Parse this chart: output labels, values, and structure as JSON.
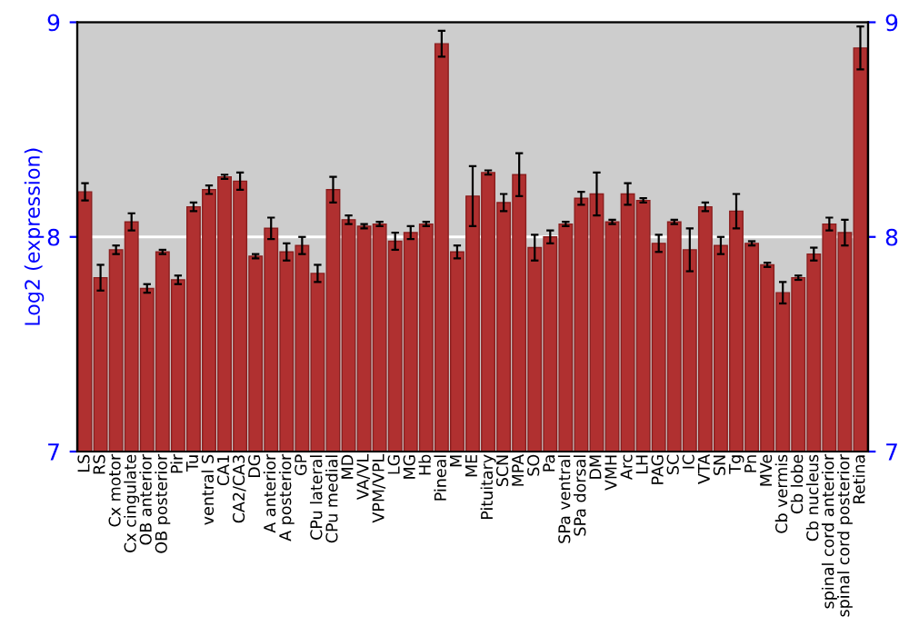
{
  "chart_data": {
    "type": "bar",
    "ylabel": "Log2 (expression)",
    "categories": [
      "LS",
      "RS",
      "Cx motor",
      "Cx cingulate",
      "OB anterior",
      "OB posterior",
      "Pir",
      "Tu",
      "ventral S",
      "CA1",
      "CA2/CA3",
      "DG",
      "A anterior",
      "A posterior",
      "GP",
      "CPu lateral",
      "CPu medial",
      "MD",
      "VA/VL",
      "VPM/VPL",
      "LG",
      "MG",
      "Hb",
      "Pineal",
      "M",
      "ME",
      "Pituitary",
      "SCN",
      "MPA",
      "SO",
      "Pa",
      "SPa ventral",
      "SPa dorsal",
      "DM",
      "VMH",
      "Arc",
      "LH",
      "PAG",
      "SC",
      "IC",
      "VTA",
      "SN",
      "Tg",
      "Pn",
      "MVe",
      "Cb vermis",
      "Cb lobe",
      "Cb nucleus",
      "spinal cord anterior",
      "spinal cord posterior",
      "Retina"
    ],
    "values": [
      8.21,
      7.81,
      7.94,
      8.07,
      7.76,
      7.93,
      7.8,
      8.14,
      8.22,
      8.28,
      8.26,
      7.91,
      8.04,
      7.93,
      7.96,
      7.83,
      8.22,
      8.08,
      8.05,
      8.06,
      7.98,
      8.02,
      8.06,
      8.9,
      7.93,
      8.19,
      8.3,
      8.16,
      8.29,
      7.95,
      8.0,
      8.06,
      8.18,
      8.2,
      8.07,
      8.2,
      8.17,
      7.97,
      8.07,
      7.94,
      8.14,
      7.96,
      8.12,
      7.97,
      7.87,
      7.74,
      7.81,
      7.92,
      8.06,
      8.02,
      8.88
    ],
    "errors": [
      0.04,
      0.06,
      0.02,
      0.04,
      0.02,
      0.01,
      0.02,
      0.02,
      0.02,
      0.01,
      0.04,
      0.01,
      0.05,
      0.04,
      0.04,
      0.04,
      0.06,
      0.02,
      0.01,
      0.01,
      0.04,
      0.03,
      0.01,
      0.06,
      0.03,
      0.14,
      0.01,
      0.04,
      0.1,
      0.06,
      0.03,
      0.01,
      0.03,
      0.1,
      0.01,
      0.05,
      0.01,
      0.04,
      0.01,
      0.1,
      0.02,
      0.04,
      0.08,
      0.01,
      0.01,
      0.05,
      0.01,
      0.03,
      0.03,
      0.06,
      0.1
    ],
    "color": "#b03030",
    "ylim": [
      7,
      9
    ],
    "yticks": [
      7,
      8,
      9
    ],
    "y2lim": [
      7,
      9
    ],
    "y2ticks": [
      7,
      8,
      9
    ],
    "ref_lines": [
      {
        "axis": "y",
        "value": 8,
        "color": "#ffffff"
      }
    ],
    "grid": false
  }
}
